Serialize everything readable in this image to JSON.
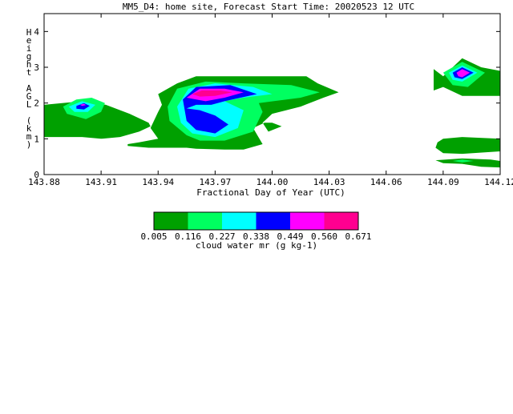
{
  "chart_data": {
    "type": "contour",
    "title": "MM5_D4: home site,  Forecast Start Time: 20020523 12 UTC",
    "xlabel": "Fractional Day of Year (UTC)",
    "ylabel": "Height AGL (km)",
    "xlim": [
      143.88,
      144.12
    ],
    "ylim": [
      0,
      4.5
    ],
    "x_ticks": [
      "143.88",
      "143.91",
      "143.94",
      "143.97",
      "144.00",
      "144.03",
      "144.06",
      "144.09",
      "144.12"
    ],
    "y_ticks": [
      "0",
      "1",
      "2",
      "3",
      "4"
    ],
    "colorbar": {
      "label": "cloud water mr (g kg-1)",
      "levels": [
        "0.005",
        "0.116",
        "0.227",
        "0.338",
        "0.449",
        "0.560",
        "0.671"
      ],
      "colors": [
        "#00a000",
        "#00ff60",
        "#00ffff",
        "#0000ff",
        "#ff00ff",
        "#ff0090"
      ]
    },
    "regions": [
      {
        "name": "cloud-left",
        "layers": [
          {
            "level": 0,
            "points": [
              [
                143.88,
                1.95
              ],
              [
                143.9,
                2.05
              ],
              [
                143.9125,
                1.95
              ],
              [
                143.925,
                1.7
              ],
              [
                143.935,
                1.45
              ],
              [
                143.936,
                1.35
              ],
              [
                143.93,
                1.2
              ],
              [
                143.92,
                1.05
              ],
              [
                143.91,
                1.0
              ],
              [
                143.9,
                1.05
              ],
              [
                143.88,
                1.05
              ]
            ]
          },
          {
            "level": 1,
            "points": [
              [
                143.89,
                1.9
              ],
              [
                143.897,
                2.1
              ],
              [
                143.905,
                2.15
              ],
              [
                143.912,
                2.0
              ],
              [
                143.91,
                1.75
              ],
              [
                143.902,
                1.55
              ],
              [
                143.892,
                1.7
              ]
            ]
          },
          {
            "level": 2,
            "points": [
              [
                143.893,
                1.9
              ],
              [
                143.9,
                2.05
              ],
              [
                143.907,
                1.95
              ],
              [
                143.903,
                1.75
              ],
              [
                143.896,
                1.75
              ]
            ]
          },
          {
            "level": 3,
            "points": [
              [
                143.897,
                1.92
              ],
              [
                143.901,
                2.0
              ],
              [
                143.904,
                1.92
              ],
              [
                143.901,
                1.82
              ],
              [
                143.897,
                1.84
              ]
            ]
          },
          {
            "level": 4,
            "points": [
              [
                143.899,
                1.95
              ],
              [
                143.901,
                1.98
              ],
              [
                143.902,
                1.94
              ],
              [
                143.9,
                1.92
              ]
            ]
          }
        ]
      },
      {
        "name": "cloud-middle",
        "layers": [
          {
            "level": 0,
            "points": [
              [
                143.924,
                0.8
              ],
              [
                143.935,
                0.75
              ],
              [
                143.955,
                0.75
              ],
              [
                143.96,
                0.72
              ],
              [
                143.975,
                0.7
              ],
              [
                143.985,
                0.7
              ],
              [
                143.995,
                0.85
              ],
              [
                143.99,
                1.3
              ],
              [
                143.996,
                1.45
              ],
              [
                144.0,
                1.45
              ],
              [
                144.005,
                1.35
              ],
              [
                143.998,
                1.2
              ],
              [
                143.995,
                1.45
              ],
              [
                144.0,
                1.7
              ],
              [
                144.015,
                1.9
              ],
              [
                144.027,
                2.15
              ],
              [
                144.035,
                2.3
              ],
              [
                144.024,
                2.55
              ],
              [
                144.018,
                2.75
              ],
              [
                144.006,
                2.75
              ],
              [
                143.985,
                2.75
              ],
              [
                143.96,
                2.75
              ],
              [
                143.95,
                2.55
              ],
              [
                143.94,
                2.25
              ],
              [
                143.942,
                1.95
              ],
              [
                143.94,
                1.75
              ],
              [
                143.936,
                1.3
              ],
              [
                143.94,
                1.0
              ],
              [
                143.93,
                0.9
              ],
              [
                143.924,
                0.85
              ]
            ]
          },
          {
            "level": 1,
            "points": [
              [
                143.945,
                1.9
              ],
              [
                143.95,
                2.4
              ],
              [
                143.965,
                2.6
              ],
              [
                143.985,
                2.55
              ],
              [
                144.01,
                2.5
              ],
              [
                144.025,
                2.3
              ],
              [
                144.015,
                2.15
              ],
              [
                143.993,
                2.0
              ],
              [
                143.995,
                1.75
              ],
              [
                143.99,
                1.2
              ],
              [
                143.975,
                0.95
              ],
              [
                143.962,
                0.95
              ],
              [
                143.955,
                1.1
              ],
              [
                143.946,
                1.5
              ]
            ]
          },
          {
            "level": 2,
            "points": [
              [
                143.95,
                1.9
              ],
              [
                143.956,
                2.4
              ],
              [
                143.97,
                2.55
              ],
              [
                143.99,
                2.45
              ],
              [
                144.0,
                2.25
              ],
              [
                143.985,
                2.15
              ],
              [
                143.975,
                2.05
              ],
              [
                143.985,
                1.8
              ],
              [
                143.982,
                1.3
              ],
              [
                143.97,
                1.05
              ],
              [
                143.958,
                1.15
              ],
              [
                143.952,
                1.45
              ]
            ]
          },
          {
            "level": 3,
            "points": [
              [
                143.953,
                2.1
              ],
              [
                143.96,
                2.45
              ],
              [
                143.978,
                2.5
              ],
              [
                143.992,
                2.25
              ],
              [
                143.975,
                2.05
              ],
              [
                143.968,
                1.95
              ],
              [
                143.96,
                1.95
              ],
              [
                143.955,
                1.85
              ],
              [
                143.962,
                1.8
              ],
              [
                143.97,
                1.65
              ],
              [
                143.977,
                1.4
              ],
              [
                143.97,
                1.15
              ],
              [
                143.96,
                1.25
              ],
              [
                143.955,
                1.5
              ]
            ]
          },
          {
            "level": 4,
            "points": [
              [
                143.955,
                2.15
              ],
              [
                143.962,
                2.4
              ],
              [
                143.975,
                2.4
              ],
              [
                143.985,
                2.3
              ],
              [
                143.975,
                2.15
              ],
              [
                143.965,
                2.05
              ]
            ]
          },
          {
            "level": 5,
            "points": [
              [
                143.958,
                2.25
              ],
              [
                143.963,
                2.35
              ],
              [
                143.973,
                2.35
              ],
              [
                143.979,
                2.3
              ],
              [
                143.97,
                2.2
              ],
              [
                143.962,
                2.18
              ]
            ]
          }
        ]
      },
      {
        "name": "cloud-right-upper",
        "layers": [
          {
            "level": 0,
            "points": [
              [
                144.085,
                2.95
              ],
              [
                144.09,
                2.75
              ],
              [
                144.1,
                3.25
              ],
              [
                144.11,
                3.0
              ],
              [
                144.12,
                2.9
              ],
              [
                144.12,
                2.2
              ],
              [
                144.1,
                2.2
              ],
              [
                144.09,
                2.45
              ],
              [
                144.085,
                2.35
              ]
            ]
          },
          {
            "level": 1,
            "points": [
              [
                144.09,
                2.85
              ],
              [
                144.1,
                3.15
              ],
              [
                144.112,
                2.85
              ],
              [
                144.103,
                2.45
              ],
              [
                144.095,
                2.5
              ]
            ]
          },
          {
            "level": 2,
            "points": [
              [
                144.093,
                2.85
              ],
              [
                144.1,
                3.05
              ],
              [
                144.108,
                2.85
              ],
              [
                144.1,
                2.6
              ],
              [
                144.095,
                2.65
              ]
            ]
          },
          {
            "level": 3,
            "points": [
              [
                144.095,
                2.85
              ],
              [
                144.1,
                3.0
              ],
              [
                144.106,
                2.85
              ],
              [
                144.1,
                2.67
              ],
              [
                144.096,
                2.72
              ]
            ]
          },
          {
            "level": 4,
            "points": [
              [
                144.097,
                2.85
              ],
              [
                144.1,
                2.95
              ],
              [
                144.104,
                2.85
              ],
              [
                144.1,
                2.72
              ],
              [
                144.098,
                2.75
              ]
            ]
          }
        ]
      },
      {
        "name": "cloud-right-lower",
        "layers": [
          {
            "level": 0,
            "points": [
              [
                144.086,
                0.75
              ],
              [
                144.09,
                0.6
              ],
              [
                144.1,
                0.58
              ],
              [
                144.12,
                0.65
              ],
              [
                144.12,
                1.0
              ],
              [
                144.1,
                1.05
              ],
              [
                144.09,
                1.0
              ],
              [
                144.087,
                0.9
              ]
            ]
          },
          {
            "level": 0,
            "points": [
              [
                144.086,
                0.4
              ],
              [
                144.1,
                0.45
              ],
              [
                144.115,
                0.42
              ],
              [
                144.12,
                0.38
              ],
              [
                144.12,
                0.2
              ],
              [
                144.11,
                0.22
              ],
              [
                144.1,
                0.3
              ],
              [
                144.09,
                0.32
              ]
            ]
          },
          {
            "level": 1,
            "points": [
              [
                144.095,
                0.38
              ],
              [
                144.1,
                0.42
              ],
              [
                144.106,
                0.38
              ],
              [
                144.1,
                0.34
              ]
            ]
          }
        ]
      }
    ]
  }
}
